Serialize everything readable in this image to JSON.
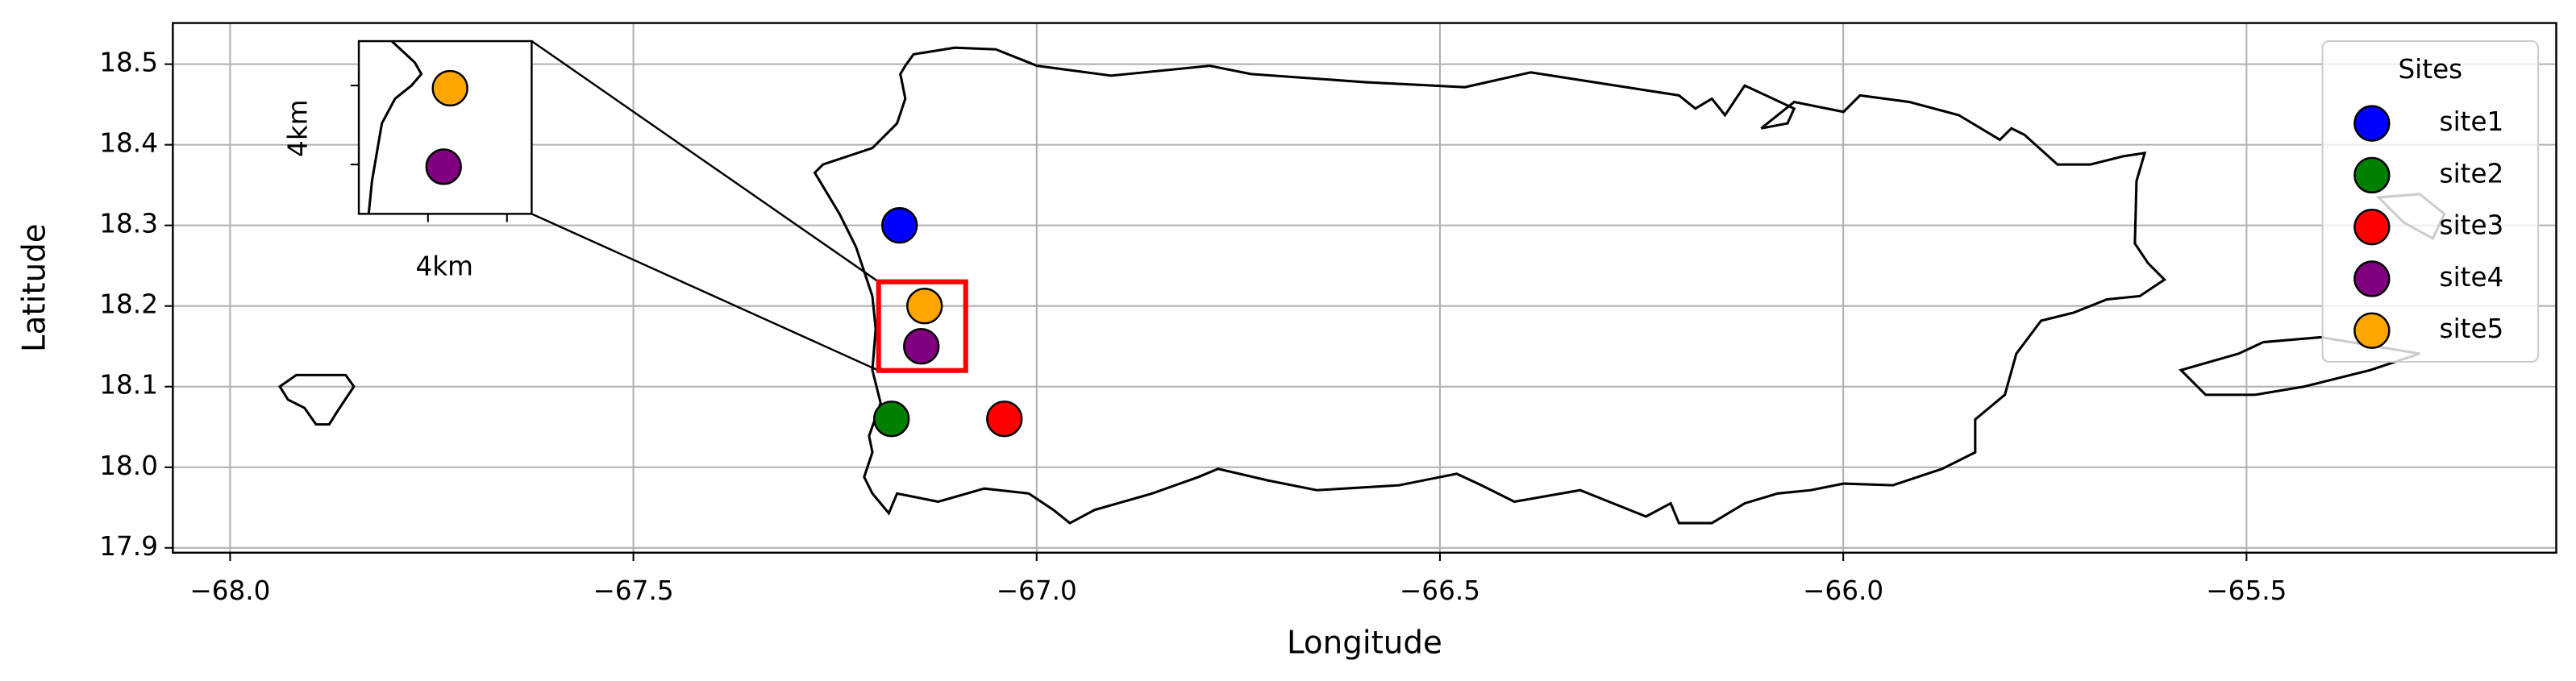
{
  "chart_data": {
    "type": "scatter",
    "xlabel": "Longitude",
    "ylabel": "Latitude",
    "xlim": [
      -68.071,
      -65.116
    ],
    "ylim": [
      17.894,
      18.551
    ],
    "xticks": [
      {
        "value": -68.0,
        "label": "−68.0"
      },
      {
        "value": -67.5,
        "label": "−67.5"
      },
      {
        "value": -67.0,
        "label": "−67.0"
      },
      {
        "value": -66.5,
        "label": "−66.5"
      },
      {
        "value": -66.0,
        "label": "−66.0"
      },
      {
        "value": -65.5,
        "label": "−65.5"
      }
    ],
    "yticks": [
      17.9,
      {
        "value": 18.0,
        "label": "18.0"
      },
      18.1,
      18.2,
      18.3,
      18.4,
      18.5
    ],
    "grid": true,
    "legend": {
      "title": "Sites",
      "position": "upper right"
    },
    "series": [
      {
        "name": "site1",
        "color": "#0000ff",
        "x": [
          -67.17
        ],
        "values": [
          18.3
        ]
      },
      {
        "name": "site2",
        "color": "#008000",
        "x": [
          -67.18
        ],
        "values": [
          18.06
        ]
      },
      {
        "name": "site3",
        "color": "#ff0000",
        "x": [
          -67.04
        ],
        "values": [
          18.06
        ]
      },
      {
        "name": "site4",
        "color": "#800080",
        "x": [
          -67.143
        ],
        "values": [
          18.15
        ]
      },
      {
        "name": "site5",
        "color": "#ffa500",
        "x": [
          -67.139
        ],
        "values": [
          18.2
        ]
      }
    ],
    "inset": {
      "xlim": [
        -67.196,
        -67.088
      ],
      "ylim": [
        18.12,
        18.23
      ],
      "xlabel": "4km",
      "ylabel": "4km",
      "frame_color": "#ff0000"
    }
  }
}
